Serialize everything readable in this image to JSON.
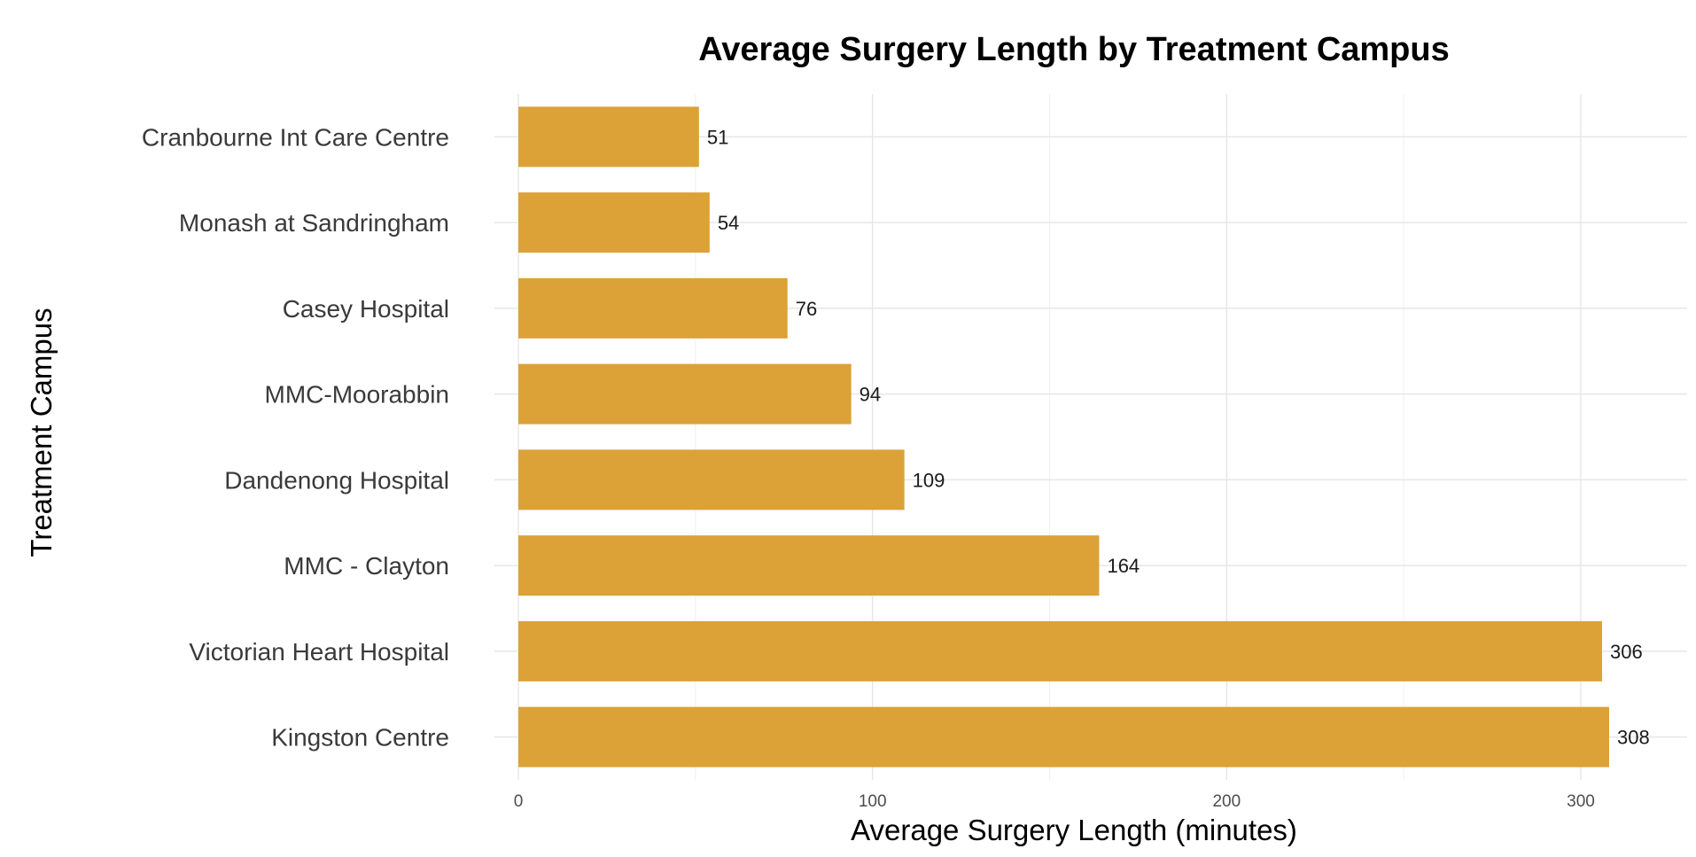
{
  "chart_data": {
    "type": "bar",
    "orientation": "horizontal",
    "title": "Average Surgery Length by Treatment Campus",
    "xlabel": "Average Surgery Length (minutes)",
    "ylabel": "Treatment Campus",
    "categories": [
      "Cranbourne Int Care Centre",
      "Monash at Sandringham",
      "Casey Hospital",
      "MMC-Moorabbin",
      "Dandenong Hospital",
      "MMC - Clayton",
      "Victorian Heart Hospital",
      "Kingston Centre"
    ],
    "values": [
      51,
      54,
      76,
      94,
      109,
      164,
      306,
      308
    ],
    "value_labels": [
      "51",
      "54",
      "76",
      "94",
      "109",
      "164",
      "306",
      "308"
    ],
    "x_ticks": [
      0,
      100,
      200,
      300
    ],
    "x_tick_labels": [
      "0",
      "100",
      "200",
      "300"
    ],
    "xlim": [
      0,
      324
    ],
    "bar_color": "#DCA237",
    "grid": true,
    "legend": "none"
  }
}
